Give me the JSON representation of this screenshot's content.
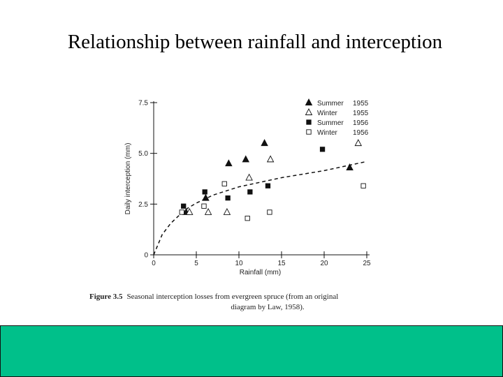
{
  "slide": {
    "title": "Relationship between rainfall and interception"
  },
  "caption": {
    "figure_label": "Figure 3.5",
    "text_line1": "Seasonal interception losses from evergreen spruce (from an original",
    "text_line2": "diagram by Law, 1958)."
  },
  "colors": {
    "footer_band": "#00c08a",
    "marker": "#111111"
  },
  "chart_data": {
    "type": "scatter",
    "xlabel": "Rainfall (mm)",
    "ylabel": "Daily interception (mm)",
    "xlim": [
      0,
      25
    ],
    "ylim": [
      0,
      7.5
    ],
    "xticks": [
      0,
      5,
      10,
      15,
      20,
      25
    ],
    "xtick_labels": [
      "0",
      "5",
      "10",
      "15",
      "20",
      "25"
    ],
    "yticks": [
      0,
      2.5,
      5.0,
      7.5
    ],
    "ytick_labels": [
      "0",
      "2.5",
      "5.0",
      "7.5"
    ],
    "legend_position": "top-right",
    "series": [
      {
        "name": "Summer",
        "year": "1955",
        "marker": "filled-triangle",
        "points": [
          [
            3.8,
            2.1
          ],
          [
            6.1,
            2.8
          ],
          [
            8.8,
            4.5
          ],
          [
            10.8,
            4.7
          ],
          [
            13.0,
            5.5
          ],
          [
            23.0,
            4.3
          ]
        ]
      },
      {
        "name": "Winter",
        "year": "1955",
        "marker": "open-triangle",
        "points": [
          [
            4.2,
            2.1
          ],
          [
            6.4,
            2.1
          ],
          [
            8.6,
            2.1
          ],
          [
            11.2,
            3.8
          ],
          [
            13.7,
            4.7
          ],
          [
            24.0,
            5.5
          ]
        ]
      },
      {
        "name": "Summer",
        "year": "1956",
        "marker": "filled-square",
        "points": [
          [
            3.5,
            2.4
          ],
          [
            6.0,
            3.1
          ],
          [
            8.7,
            2.8
          ],
          [
            11.3,
            3.1
          ],
          [
            13.4,
            3.4
          ],
          [
            19.8,
            5.2
          ]
        ]
      },
      {
        "name": "Winter",
        "year": "1956",
        "marker": "open-square",
        "points": [
          [
            3.3,
            2.1
          ],
          [
            5.9,
            2.4
          ],
          [
            8.3,
            3.5
          ],
          [
            11.0,
            1.8
          ],
          [
            13.6,
            2.1
          ],
          [
            24.6,
            3.4
          ]
        ]
      }
    ],
    "trend_line": {
      "style": "dashed",
      "points": [
        [
          0,
          0
        ],
        [
          1,
          1.0
        ],
        [
          2,
          1.55
        ],
        [
          3,
          1.95
        ],
        [
          4,
          2.3
        ],
        [
          5,
          2.55
        ],
        [
          7,
          2.95
        ],
        [
          10,
          3.35
        ],
        [
          15,
          3.8
        ],
        [
          20,
          4.15
        ],
        [
          25,
          4.6
        ]
      ]
    }
  }
}
